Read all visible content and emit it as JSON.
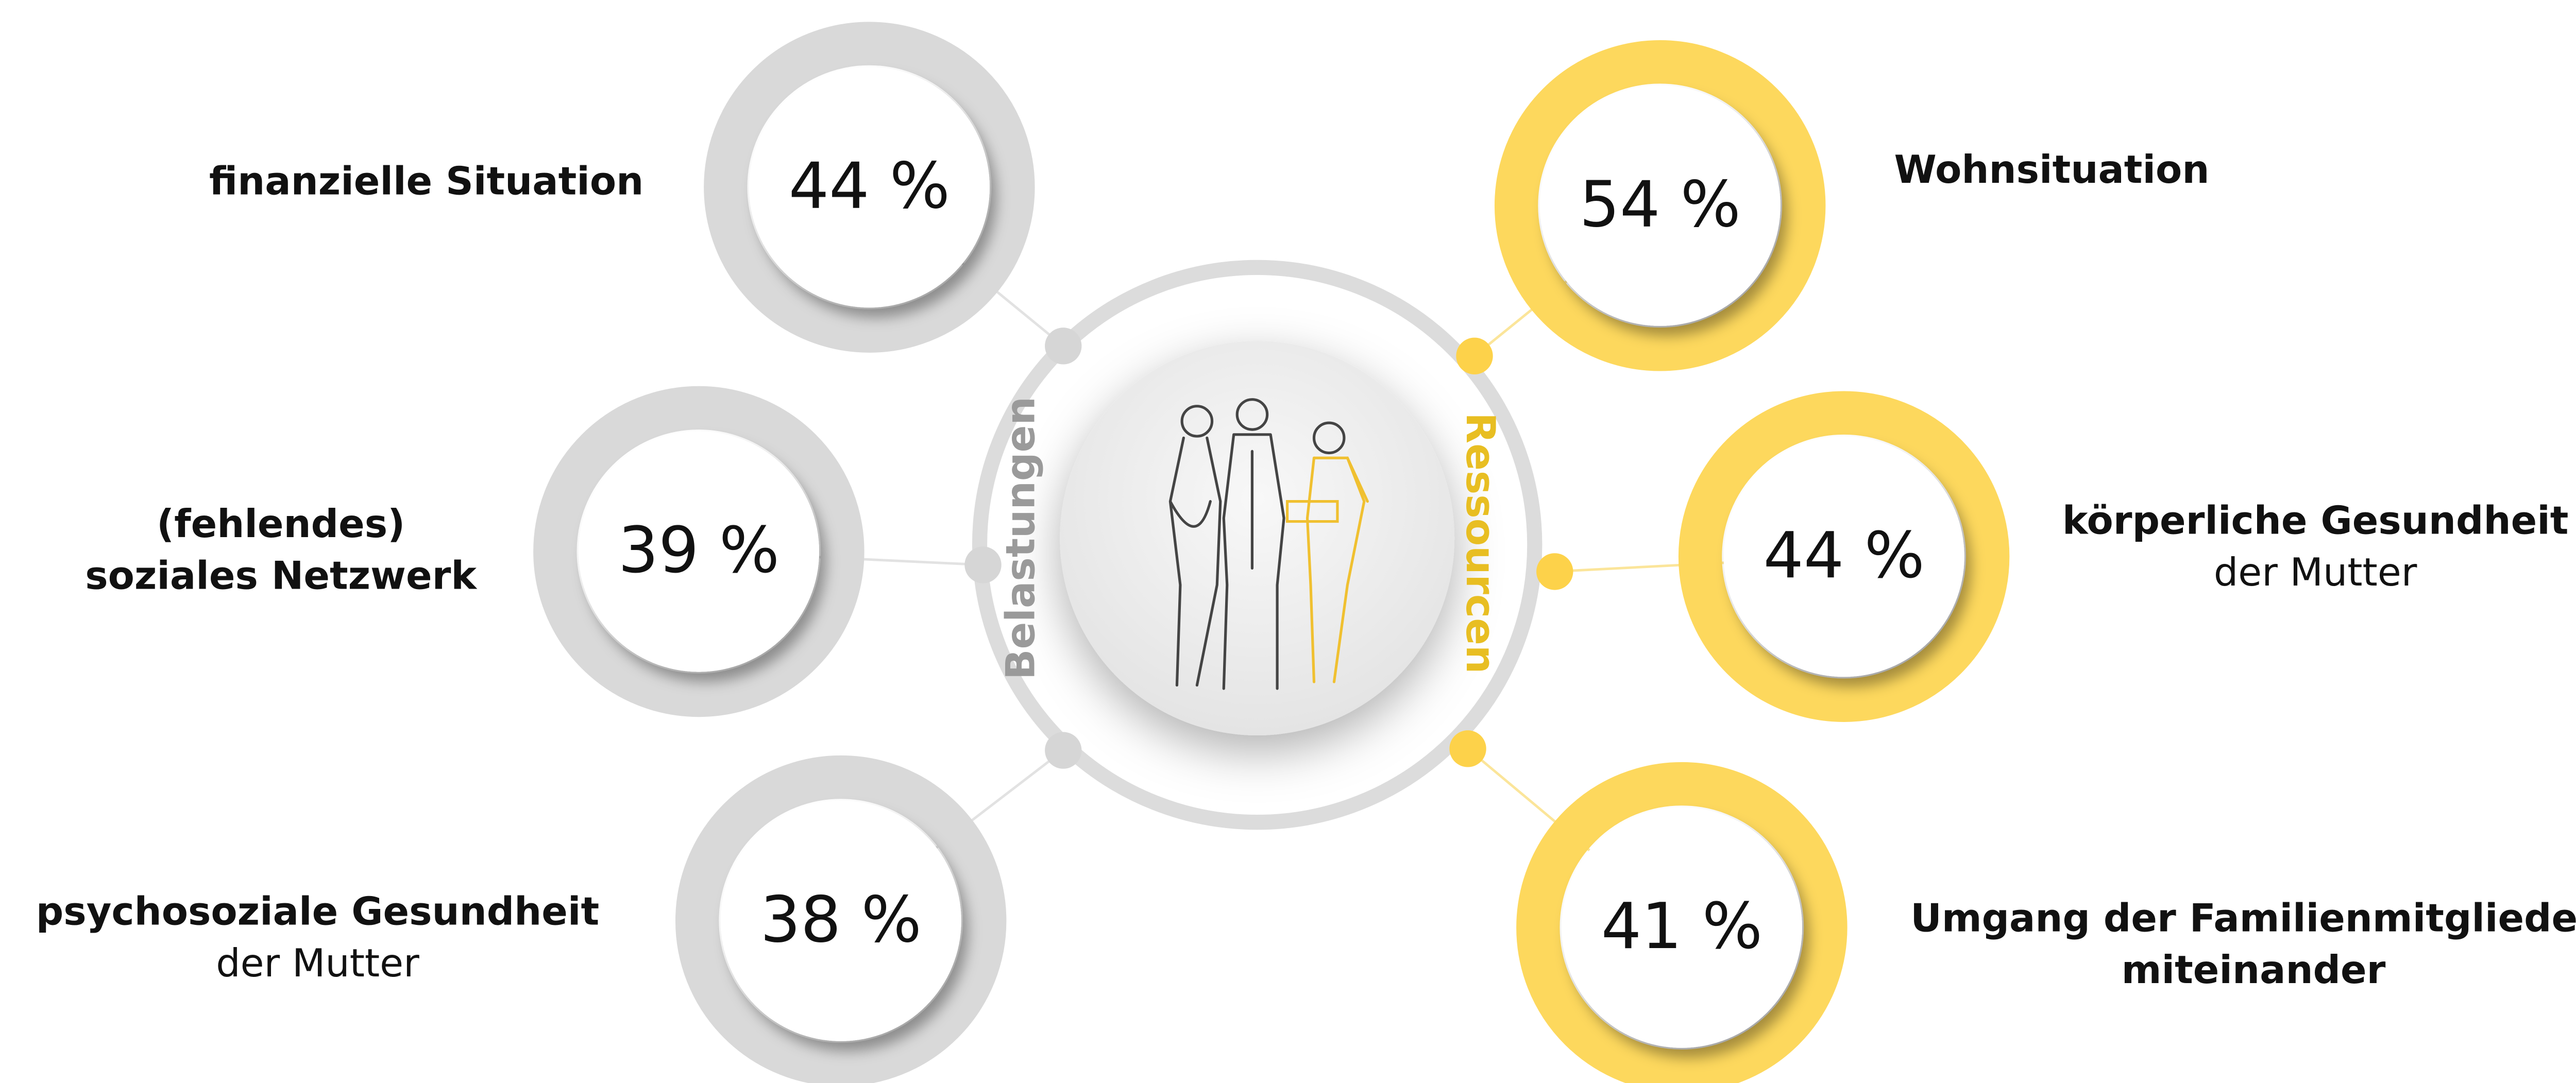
{
  "left": {
    "heading": "Belastungen",
    "items": [
      {
        "bold": [
          "finanzielle Situation"
        ],
        "value": "44 %"
      },
      {
        "bold": [
          "(fehlendes)",
          "soziales Netzwerk"
        ],
        "value": "39 %"
      },
      {
        "bold": [
          "psychosoziale Gesundheit"
        ],
        "normal": [
          "der Mutter"
        ],
        "value": "38 %"
      }
    ]
  },
  "right": {
    "heading": "Ressourcen",
    "items": [
      {
        "bold": [
          "Wohnsituation"
        ],
        "value": "54 %"
      },
      {
        "bold": [
          "körperliche Gesundheit"
        ],
        "normal": [
          "der Mutter"
        ],
        "value": "44 %"
      },
      {
        "bold": [
          "Umgang der Familienmitglieder",
          "miteinander"
        ],
        "value": "41 %"
      }
    ]
  }
}
